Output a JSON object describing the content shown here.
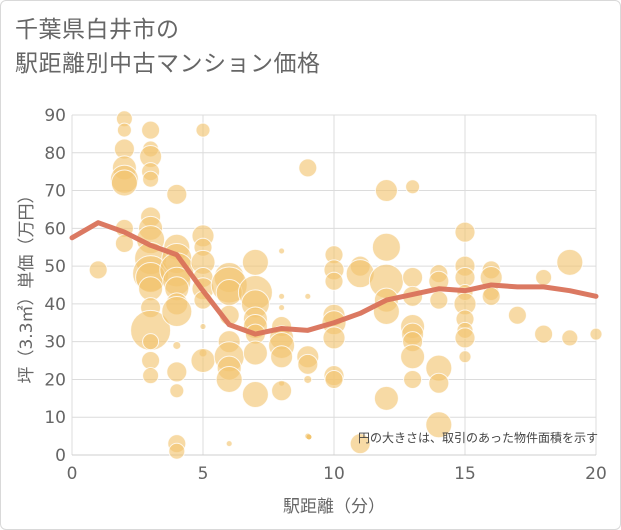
{
  "title_line1": "千葉県白井市の",
  "title_line2": "駅距離別中古マンション価格",
  "note": "円の大きさは、取引のあった物件面積を示す",
  "colors": {
    "bubble": "#f2c46d",
    "line": "#d9725a",
    "grid": "#dcdcdc",
    "text": "#666666"
  },
  "chart_data": {
    "type": "scatter",
    "xlabel": "駅距離（分）",
    "ylabel": "坪（3.3㎡）単価（万円）",
    "xlim": [
      0,
      20
    ],
    "ylim": [
      0,
      90
    ],
    "xticks": [
      0,
      5,
      10,
      15,
      20
    ],
    "yticks": [
      0,
      10,
      20,
      30,
      40,
      50,
      60,
      70,
      80,
      90
    ],
    "grid": true,
    "points": [
      {
        "x": 1,
        "y": 49,
        "r": 9
      },
      {
        "x": 2,
        "y": 89,
        "r": 8
      },
      {
        "x": 2,
        "y": 86,
        "r": 7
      },
      {
        "x": 2,
        "y": 81,
        "r": 10
      },
      {
        "x": 2,
        "y": 76,
        "r": 12
      },
      {
        "x": 2,
        "y": 73,
        "r": 14
      },
      {
        "x": 2,
        "y": 72,
        "r": 13
      },
      {
        "x": 2,
        "y": 60,
        "r": 9
      },
      {
        "x": 2,
        "y": 56,
        "r": 9
      },
      {
        "x": 3,
        "y": 86,
        "r": 9
      },
      {
        "x": 3,
        "y": 81,
        "r": 8
      },
      {
        "x": 3,
        "y": 79,
        "r": 11
      },
      {
        "x": 3,
        "y": 75,
        "r": 9
      },
      {
        "x": 3,
        "y": 73,
        "r": 8
      },
      {
        "x": 3,
        "y": 63,
        "r": 10
      },
      {
        "x": 3,
        "y": 60,
        "r": 12
      },
      {
        "x": 3,
        "y": 57,
        "r": 14
      },
      {
        "x": 3,
        "y": 52,
        "r": 16
      },
      {
        "x": 3,
        "y": 48,
        "r": 18
      },
      {
        "x": 3,
        "y": 47,
        "r": 15
      },
      {
        "x": 3,
        "y": 44,
        "r": 12
      },
      {
        "x": 3,
        "y": 39,
        "r": 10
      },
      {
        "x": 3,
        "y": 33,
        "r": 20
      },
      {
        "x": 3,
        "y": 30,
        "r": 8
      },
      {
        "x": 3,
        "y": 25,
        "r": 9
      },
      {
        "x": 3,
        "y": 21,
        "r": 8
      },
      {
        "x": 4,
        "y": 69,
        "r": 10
      },
      {
        "x": 4,
        "y": 55,
        "r": 13
      },
      {
        "x": 4,
        "y": 52,
        "r": 15
      },
      {
        "x": 4,
        "y": 49,
        "r": 17
      },
      {
        "x": 4,
        "y": 46,
        "r": 14
      },
      {
        "x": 4,
        "y": 44,
        "r": 12
      },
      {
        "x": 4,
        "y": 40,
        "r": 11
      },
      {
        "x": 4,
        "y": 38,
        "r": 15
      },
      {
        "x": 4,
        "y": 29,
        "r": 4
      },
      {
        "x": 4,
        "y": 22,
        "r": 10
      },
      {
        "x": 4,
        "y": 17,
        "r": 7
      },
      {
        "x": 4,
        "y": 3,
        "r": 9
      },
      {
        "x": 4,
        "y": 1,
        "r": 8
      },
      {
        "x": 5,
        "y": 86,
        "r": 7
      },
      {
        "x": 5,
        "y": 58,
        "r": 11
      },
      {
        "x": 5,
        "y": 55,
        "r": 9
      },
      {
        "x": 5,
        "y": 51,
        "r": 12
      },
      {
        "x": 5,
        "y": 47,
        "r": 10
      },
      {
        "x": 5,
        "y": 44,
        "r": 11
      },
      {
        "x": 5,
        "y": 41,
        "r": 9
      },
      {
        "x": 5,
        "y": 34,
        "r": 3
      },
      {
        "x": 5,
        "y": 27,
        "r": 4
      },
      {
        "x": 5,
        "y": 25,
        "r": 12
      },
      {
        "x": 6,
        "y": 47,
        "r": 15
      },
      {
        "x": 6,
        "y": 45,
        "r": 18
      },
      {
        "x": 6,
        "y": 43,
        "r": 13
      },
      {
        "x": 6,
        "y": 37,
        "r": 10
      },
      {
        "x": 6,
        "y": 30,
        "r": 11
      },
      {
        "x": 6,
        "y": 26,
        "r": 15
      },
      {
        "x": 6,
        "y": 23,
        "r": 12
      },
      {
        "x": 6,
        "y": 20,
        "r": 13
      },
      {
        "x": 6,
        "y": 3,
        "r": 3
      },
      {
        "x": 7,
        "y": 51,
        "r": 13
      },
      {
        "x": 7,
        "y": 43,
        "r": 17
      },
      {
        "x": 7,
        "y": 40,
        "r": 14
      },
      {
        "x": 7,
        "y": 36,
        "r": 12
      },
      {
        "x": 7,
        "y": 34,
        "r": 12
      },
      {
        "x": 7,
        "y": 32,
        "r": 10
      },
      {
        "x": 7,
        "y": 27,
        "r": 12
      },
      {
        "x": 7,
        "y": 16,
        "r": 13
      },
      {
        "x": 8,
        "y": 54,
        "r": 3
      },
      {
        "x": 8,
        "y": 42,
        "r": 3
      },
      {
        "x": 8,
        "y": 39,
        "r": 3
      },
      {
        "x": 8,
        "y": 34,
        "r": 10
      },
      {
        "x": 8,
        "y": 31,
        "r": 12
      },
      {
        "x": 8,
        "y": 29,
        "r": 13
      },
      {
        "x": 8,
        "y": 26,
        "r": 11
      },
      {
        "x": 8,
        "y": 19,
        "r": 3
      },
      {
        "x": 8,
        "y": 17,
        "r": 10
      },
      {
        "x": 9,
        "y": 76,
        "r": 9
      },
      {
        "x": 9,
        "y": 42,
        "r": 3
      },
      {
        "x": 9,
        "y": 26,
        "r": 11
      },
      {
        "x": 9,
        "y": 24,
        "r": 10
      },
      {
        "x": 9,
        "y": 20,
        "r": 4
      },
      {
        "x": 9,
        "y": 5,
        "r": 3
      },
      {
        "x": 10,
        "y": 53,
        "r": 9
      },
      {
        "x": 10,
        "y": 49,
        "r": 10
      },
      {
        "x": 10,
        "y": 46,
        "r": 9
      },
      {
        "x": 10,
        "y": 37,
        "r": 11
      },
      {
        "x": 10,
        "y": 35,
        "r": 12
      },
      {
        "x": 10,
        "y": 31,
        "r": 11
      },
      {
        "x": 10,
        "y": 21,
        "r": 10
      },
      {
        "x": 10,
        "y": 20,
        "r": 9
      },
      {
        "x": 11,
        "y": 50,
        "r": 10
      },
      {
        "x": 11,
        "y": 48,
        "r": 14
      },
      {
        "x": 11,
        "y": 3,
        "r": 10
      },
      {
        "x": 12,
        "y": 70,
        "r": 11
      },
      {
        "x": 12,
        "y": 55,
        "r": 14
      },
      {
        "x": 12,
        "y": 46,
        "r": 17
      },
      {
        "x": 12,
        "y": 41,
        "r": 12
      },
      {
        "x": 12,
        "y": 38,
        "r": 13
      },
      {
        "x": 12,
        "y": 15,
        "r": 12
      },
      {
        "x": 13,
        "y": 71,
        "r": 7
      },
      {
        "x": 13,
        "y": 47,
        "r": 10
      },
      {
        "x": 13,
        "y": 42,
        "r": 10
      },
      {
        "x": 13,
        "y": 34,
        "r": 12
      },
      {
        "x": 13,
        "y": 32,
        "r": 11
      },
      {
        "x": 13,
        "y": 30,
        "r": 10
      },
      {
        "x": 13,
        "y": 26,
        "r": 12
      },
      {
        "x": 13,
        "y": 20,
        "r": 9
      },
      {
        "x": 14,
        "y": 48,
        "r": 9
      },
      {
        "x": 14,
        "y": 46,
        "r": 10
      },
      {
        "x": 14,
        "y": 41,
        "r": 9
      },
      {
        "x": 14,
        "y": 23,
        "r": 13
      },
      {
        "x": 14,
        "y": 19,
        "r": 10
      },
      {
        "x": 14,
        "y": 8,
        "r": 13
      },
      {
        "x": 15,
        "y": 59,
        "r": 10
      },
      {
        "x": 15,
        "y": 50,
        "r": 10
      },
      {
        "x": 15,
        "y": 47,
        "r": 10
      },
      {
        "x": 15,
        "y": 43,
        "r": 8
      },
      {
        "x": 15,
        "y": 40,
        "r": 11
      },
      {
        "x": 15,
        "y": 36,
        "r": 9
      },
      {
        "x": 15,
        "y": 33,
        "r": 8
      },
      {
        "x": 15,
        "y": 31,
        "r": 10
      },
      {
        "x": 15,
        "y": 26,
        "r": 6
      },
      {
        "x": 16,
        "y": 49,
        "r": 9
      },
      {
        "x": 16,
        "y": 47,
        "r": 11
      },
      {
        "x": 16,
        "y": 43,
        "r": 8
      },
      {
        "x": 16,
        "y": 42,
        "r": 9
      },
      {
        "x": 17,
        "y": 37,
        "r": 9
      },
      {
        "x": 18,
        "y": 47,
        "r": 8
      },
      {
        "x": 18,
        "y": 32,
        "r": 9
      },
      {
        "x": 19,
        "y": 51,
        "r": 13
      },
      {
        "x": 19,
        "y": 31,
        "r": 8
      },
      {
        "x": 20,
        "y": 32,
        "r": 6
      }
    ],
    "trend": {
      "x": [
        0,
        1,
        2,
        3,
        4,
        5,
        6,
        7,
        8,
        9,
        10,
        11,
        12,
        13,
        14,
        15,
        16,
        17,
        18,
        19,
        20
      ],
      "y": [
        57.5,
        61.5,
        59,
        55.5,
        53,
        43.5,
        34.5,
        32,
        33.5,
        33,
        35,
        37.5,
        41,
        42.5,
        44,
        43.5,
        45,
        44.5,
        44.5,
        43.5,
        42
      ]
    }
  }
}
